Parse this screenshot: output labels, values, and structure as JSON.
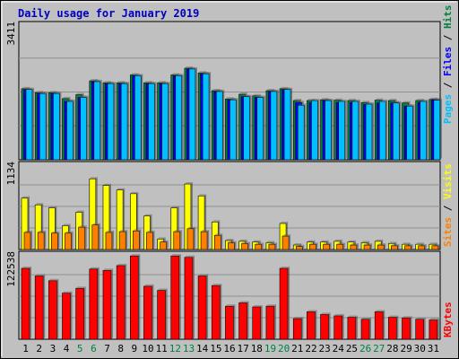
{
  "chart_data": [
    {
      "type": "bar",
      "panel": "hits-files-pages",
      "title": "Daily usage for January 2019",
      "categories": [
        "1",
        "2",
        "3",
        "4",
        "5",
        "6",
        "7",
        "8",
        "9",
        "10",
        "11",
        "12",
        "13",
        "14",
        "15",
        "16",
        "17",
        "18",
        "19",
        "20",
        "21",
        "22",
        "23",
        "24",
        "25",
        "26",
        "27",
        "28",
        "29",
        "30",
        "31"
      ],
      "weekend_days": [
        "5",
        "6",
        "12",
        "13",
        "19",
        "20",
        "26",
        "27"
      ],
      "ymax_label": "3411",
      "ylim": [
        0,
        3411
      ],
      "axis_labels": [
        "Pages",
        "Files",
        "Hits"
      ],
      "series": [
        {
          "name": "Hits",
          "color": "#008040",
          "values": [
            1800,
            1700,
            1700,
            1550,
            1650,
            2000,
            1950,
            1950,
            2150,
            1950,
            1950,
            2150,
            2320,
            2200,
            1750,
            1540,
            1660,
            1620,
            1750,
            1800,
            1500,
            1500,
            1520,
            1510,
            1500,
            1450,
            1510,
            1500,
            1440,
            1500,
            1530
          ]
        },
        {
          "name": "Files",
          "color": "#0000ff",
          "values": [
            1780,
            1680,
            1680,
            1480,
            1580,
            1980,
            1930,
            1930,
            2130,
            1930,
            1930,
            2130,
            2300,
            2180,
            1730,
            1520,
            1600,
            1580,
            1730,
            1780,
            1450,
            1450,
            1500,
            1450,
            1450,
            1400,
            1440,
            1440,
            1360,
            1450,
            1520
          ]
        },
        {
          "name": "Pages",
          "color": "#00c0ff",
          "values": [
            1780,
            1680,
            1680,
            1480,
            1580,
            1980,
            1930,
            1930,
            2130,
            1930,
            1930,
            2130,
            2300,
            2180,
            1730,
            1520,
            1600,
            1580,
            1730,
            1780,
            1380,
            1500,
            1500,
            1480,
            1480,
            1410,
            1480,
            1440,
            1360,
            1480,
            1510
          ]
        }
      ]
    },
    {
      "type": "bar",
      "panel": "visits-sites",
      "categories": [
        "1",
        "2",
        "3",
        "4",
        "5",
        "6",
        "7",
        "8",
        "9",
        "10",
        "11",
        "12",
        "13",
        "14",
        "15",
        "16",
        "17",
        "18",
        "19",
        "20",
        "21",
        "22",
        "23",
        "24",
        "25",
        "26",
        "27",
        "28",
        "29",
        "30",
        "31"
      ],
      "ymax_label": "1134",
      "ylim": [
        0,
        1134
      ],
      "axis_labels": [
        "Sites",
        "Visits"
      ],
      "series": [
        {
          "name": "Visits",
          "color": "#ffff00",
          "values": [
            690,
            600,
            560,
            320,
            500,
            950,
            860,
            800,
            750,
            450,
            140,
            560,
            880,
            720,
            370,
            120,
            110,
            100,
            90,
            350,
            60,
            100,
            100,
            110,
            100,
            90,
            110,
            80,
            70,
            70,
            70
          ]
        },
        {
          "name": "Sites",
          "color": "#ff8000",
          "values": [
            230,
            230,
            220,
            220,
            300,
            330,
            230,
            240,
            250,
            230,
            100,
            240,
            280,
            240,
            190,
            90,
            80,
            70,
            70,
            180,
            40,
            70,
            70,
            70,
            60,
            60,
            60,
            50,
            50,
            50,
            50
          ]
        }
      ]
    },
    {
      "type": "bar",
      "panel": "kbytes",
      "categories": [
        "1",
        "2",
        "3",
        "4",
        "5",
        "6",
        "7",
        "8",
        "9",
        "10",
        "11",
        "12",
        "13",
        "14",
        "15",
        "16",
        "17",
        "18",
        "19",
        "20",
        "21",
        "22",
        "23",
        "24",
        "25",
        "26",
        "27",
        "28",
        "29",
        "30",
        "31"
      ],
      "ymax_label": "122538",
      "ylim": [
        0,
        122538
      ],
      "axis_labels": [
        "KBytes"
      ],
      "series": [
        {
          "name": "KBytes",
          "color": "#ff0000",
          "values": [
            103000,
            92000,
            85000,
            67000,
            74000,
            102000,
            100000,
            107000,
            121000,
            77000,
            71000,
            121000,
            119000,
            92000,
            78000,
            48000,
            53000,
            47000,
            48000,
            103000,
            30000,
            40000,
            36000,
            34000,
            32000,
            29000,
            40000,
            32000,
            31000,
            29000,
            28000
          ]
        }
      ]
    }
  ]
}
